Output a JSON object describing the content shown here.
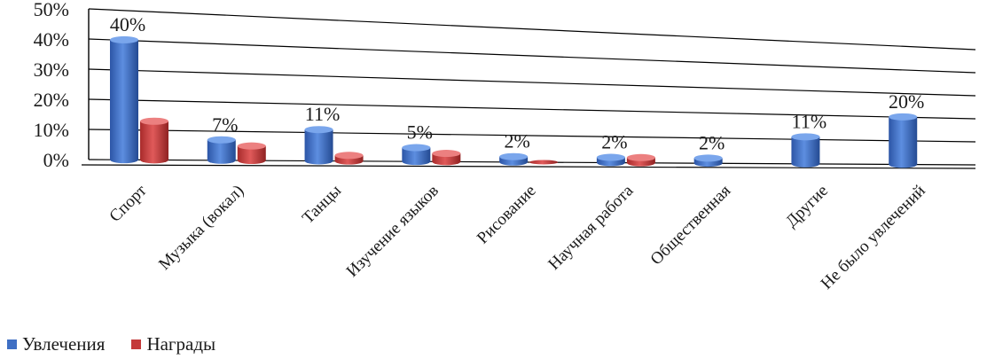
{
  "chart_data": {
    "type": "bar",
    "categories": [
      "Спорт",
      "Музыка (вокал)",
      "Танцы",
      "Изучение языков",
      "Рисование",
      "Научная работа",
      "Общественная",
      "Другие",
      "Не было увлечений"
    ],
    "series": [
      {
        "name": "Увлечения",
        "color": "#3f6fc4",
        "values": [
          40,
          7,
          11,
          5,
          2,
          2,
          2,
          11,
          20
        ],
        "labels": [
          "40%",
          "7%",
          "11%",
          "5%",
          "2%",
          "2%",
          "2%",
          "11%",
          "20%"
        ]
      },
      {
        "name": "Награды",
        "color": "#c43a3a",
        "values": [
          13,
          5,
          2,
          3,
          0,
          2,
          0,
          0,
          0
        ]
      }
    ],
    "yticks": [
      "0%",
      "10%",
      "20%",
      "30%",
      "40%",
      "50%"
    ],
    "ylim": [
      0,
      50
    ],
    "grid": true,
    "legend": "bottom-left"
  }
}
